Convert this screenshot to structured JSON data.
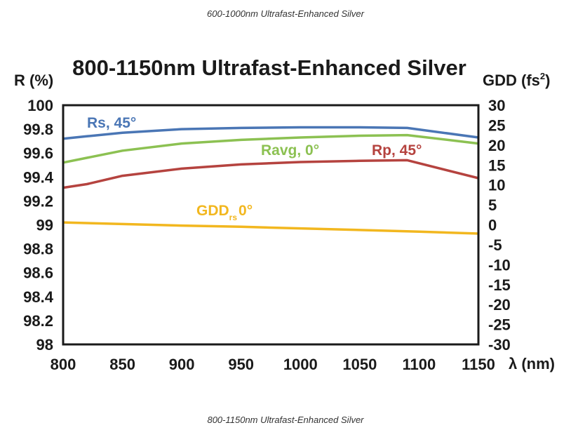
{
  "captions": {
    "top": "600-1000nm Ultrafast-Enhanced Silver",
    "bottom": "800-1150nm Ultrafast-Enhanced Silver"
  },
  "chart_data": {
    "type": "line",
    "title": "800-1150nm Ultrafast-Enhanced Silver",
    "xlabel": "λ (nm)",
    "ylabel_left": "R (%)",
    "ylabel_right_base": "GDD (fs",
    "ylabel_right_sup": "2",
    "ylabel_right_close": ")",
    "xlim": [
      800,
      1150
    ],
    "ylim_left": [
      98,
      100
    ],
    "ylim_right": [
      -30,
      30
    ],
    "x_ticks": [
      "800",
      "850",
      "900",
      "950",
      "1000",
      "1050",
      "1100",
      "1150"
    ],
    "y_left_ticks": [
      "100",
      "99.8",
      "99.6",
      "99.4",
      "99.2",
      "99",
      "98.8",
      "98.6",
      "98.4",
      "98.2",
      "98"
    ],
    "y_right_ticks": [
      "30",
      "25",
      "20",
      "15",
      "10",
      "5",
      "0",
      "-5",
      "-10",
      "-15",
      "-20",
      "-25",
      "-30"
    ],
    "grid": false,
    "series": [
      {
        "name": "Rs, 45°",
        "label": "Rs, 45°",
        "axis": "left",
        "color": "#4a76b5",
        "x": [
          800,
          820,
          850,
          900,
          950,
          1000,
          1050,
          1090,
          1150
        ],
        "y": [
          99.72,
          99.74,
          99.77,
          99.8,
          99.81,
          99.815,
          99.815,
          99.81,
          99.73
        ]
      },
      {
        "name": "Ravg, 0°",
        "label": "Ravg, 0°",
        "axis": "left",
        "color": "#8cc152",
        "x": [
          800,
          820,
          850,
          900,
          950,
          1000,
          1050,
          1090,
          1150
        ],
        "y": [
          99.52,
          99.56,
          99.62,
          99.68,
          99.71,
          99.73,
          99.745,
          99.75,
          99.68
        ]
      },
      {
        "name": "Rp, 45°",
        "label": "Rp, 45°",
        "axis": "left",
        "color": "#b5433f",
        "x": [
          800,
          820,
          850,
          900,
          950,
          1000,
          1050,
          1090,
          1150
        ],
        "y": [
          99.31,
          99.34,
          99.41,
          99.47,
          99.505,
          99.525,
          99.535,
          99.54,
          99.39
        ]
      },
      {
        "name": "GDD rs 0°",
        "label_main": "GDD",
        "label_sub": "rs",
        "label_tail": "0°",
        "axis": "right",
        "color": "#f2b71f",
        "x": [
          800,
          850,
          900,
          950,
          1000,
          1050,
          1100,
          1150
        ],
        "y": [
          0.6,
          0.2,
          -0.2,
          -0.5,
          -0.9,
          -1.3,
          -1.7,
          -2.2
        ]
      }
    ]
  }
}
